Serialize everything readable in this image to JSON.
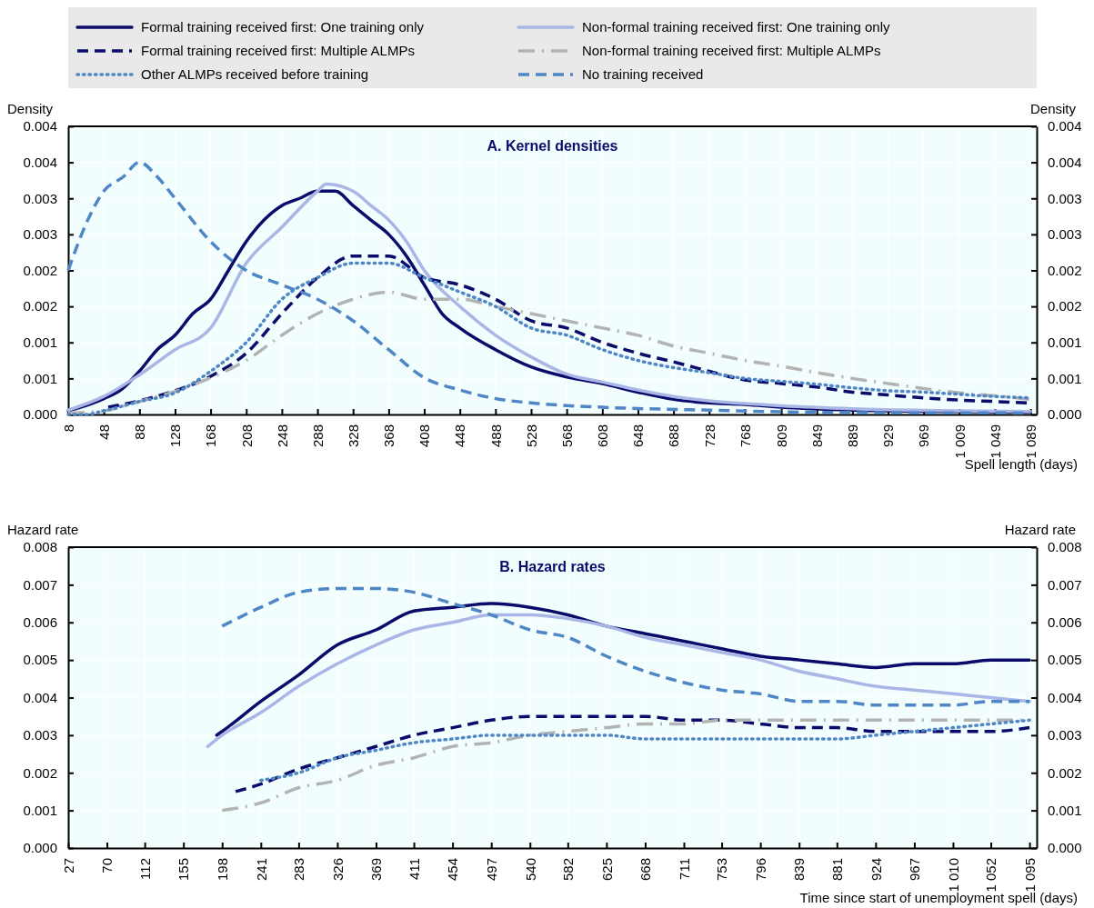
{
  "chart_data": [
    {
      "type": "line",
      "title": "A. Kernel densities",
      "xlabel": "Spell length (days)",
      "ylabel": "Density",
      "y2label": "Density",
      "legend": "top",
      "grid": true,
      "xlim": [
        8,
        1096
      ],
      "xticks": [
        8,
        48,
        88,
        128,
        168,
        208,
        248,
        288,
        328,
        368,
        408,
        448,
        488,
        528,
        568,
        608,
        648,
        688,
        728,
        768,
        809,
        849,
        889,
        929,
        969,
        {
          "value": 1009,
          "label": "1 009"
        },
        {
          "value": 1049,
          "label": "1 049"
        },
        {
          "value": 1089,
          "label": "1 089"
        }
      ],
      "ylim": [
        0,
        0.004
      ],
      "yticks": [
        {
          "value": 0,
          "label": "0.000"
        },
        {
          "value": 0.0005,
          "label": "0.001"
        },
        {
          "value": 0.001,
          "label": "0.001"
        },
        {
          "value": 0.0015,
          "label": "0.002"
        },
        {
          "value": 0.002,
          "label": "0.002"
        },
        {
          "value": 0.0025,
          "label": "0.003"
        },
        {
          "value": 0.003,
          "label": "0.003"
        },
        {
          "value": 0.0035,
          "label": "0.004"
        },
        {
          "value": 0.004,
          "label": "0.004"
        }
      ],
      "y2lim": [
        0,
        0.004
      ],
      "y2ticks": [
        {
          "value": 0,
          "label": "0.000"
        },
        {
          "value": 0.0005,
          "label": "0.001"
        },
        {
          "value": 0.001,
          "label": "0.001"
        },
        {
          "value": 0.0015,
          "label": "0.002"
        },
        {
          "value": 0.002,
          "label": "0.002"
        },
        {
          "value": 0.0025,
          "label": "0.003"
        },
        {
          "value": 0.003,
          "label": "0.003"
        },
        {
          "value": 0.0035,
          "label": "0.004"
        },
        {
          "value": 0.004,
          "label": "0.004"
        }
      ],
      "series": [
        {
          "name": "Formal training received first: One training only",
          "color": "#0b0b6b",
          "line_style": "solid",
          "x": [
            8,
            48,
            68,
            88,
            108,
            128,
            148,
            168,
            188,
            208,
            228,
            248,
            268,
            288,
            308,
            328,
            348,
            368,
            388,
            408,
            428,
            448,
            488,
            528,
            568,
            608,
            648,
            688,
            728,
            768,
            809,
            889,
            1009,
            1089
          ],
          "values": [
            5e-05,
            0.00022,
            0.00035,
            0.0006,
            0.0009,
            0.0011,
            0.0014,
            0.0016,
            0.002,
            0.0024,
            0.0027,
            0.0029,
            0.003,
            0.0031,
            0.0031,
            0.0029,
            0.0027,
            0.0025,
            0.0022,
            0.0018,
            0.0014,
            0.0012,
            0.0009,
            0.00066,
            0.00052,
            0.00043,
            0.00031,
            0.00021,
            0.00016,
            0.00014,
            0.0001,
            6e-05,
            4e-05,
            3e-05
          ]
        },
        {
          "name": "Non-formal training received first: One training only",
          "color": "#a9b6e6",
          "line_style": "solid",
          "x": [
            8,
            48,
            88,
            128,
            168,
            208,
            248,
            288,
            298,
            328,
            348,
            368,
            388,
            408,
            448,
            488,
            528,
            568,
            608,
            648,
            688,
            728,
            768,
            809,
            889,
            1009,
            1089
          ],
          "values": [
            6e-05,
            0.00025,
            0.00055,
            0.0009,
            0.0012,
            0.0021,
            0.0026,
            0.0031,
            0.0032,
            0.0031,
            0.0029,
            0.0027,
            0.0024,
            0.002,
            0.0015,
            0.0011,
            0.0008,
            0.00056,
            0.00045,
            0.00034,
            0.00025,
            0.00019,
            0.00015,
            0.00012,
            8e-05,
            5e-05,
            4e-05
          ]
        },
        {
          "name": "Formal training received first: Multiple ALMPs",
          "color": "#0b0b6b",
          "line_style": "dashed",
          "x": [
            53,
            88,
            128,
            168,
            208,
            248,
            288,
            328,
            368,
            408,
            448,
            488,
            528,
            568,
            608,
            648,
            688,
            728,
            768,
            809,
            849,
            889,
            929,
            969,
            1009,
            1049,
            1089
          ],
          "values": [
            0.0001,
            0.00019,
            0.00033,
            0.00053,
            0.00085,
            0.0014,
            0.0019,
            0.0022,
            0.0022,
            0.0019,
            0.0018,
            0.0016,
            0.0013,
            0.0012,
            0.001,
            0.00085,
            0.00073,
            0.0006,
            0.00048,
            0.00043,
            0.00038,
            0.00031,
            0.00027,
            0.00023,
            0.0002,
            0.00018,
            0.00016
          ]
        },
        {
          "name": "Non-formal training received first: Multiple ALMPs",
          "color": "#b3b3b3",
          "line_style": "dashdot",
          "x": [
            8,
            48,
            88,
            128,
            168,
            208,
            248,
            288,
            328,
            368,
            408,
            448,
            488,
            528,
            568,
            608,
            648,
            688,
            728,
            768,
            809,
            849,
            889,
            929,
            969,
            1009,
            1049,
            1089
          ],
          "values": [
            2e-05,
            5e-05,
            0.00018,
            0.00032,
            0.00051,
            0.00075,
            0.0011,
            0.0014,
            0.0016,
            0.0017,
            0.0016,
            0.0016,
            0.0015,
            0.0014,
            0.0013,
            0.0012,
            0.0011,
            0.00095,
            0.00085,
            0.00075,
            0.00067,
            0.00058,
            0.0005,
            0.00043,
            0.00036,
            0.0003,
            0.00026,
            0.00021
          ]
        },
        {
          "name": "Other ALMPs received before training",
          "color": "#4f86c6",
          "line_style": "dotted",
          "x": [
            8,
            28,
            48,
            88,
            128,
            168,
            208,
            248,
            288,
            328,
            368,
            408,
            448,
            488,
            528,
            568,
            608,
            648,
            688,
            728,
            768,
            809,
            849,
            889,
            929,
            969,
            1009,
            1049,
            1089
          ],
          "values": [
            0,
            0,
            5e-05,
            0.00018,
            0.0003,
            0.0006,
            0.001,
            0.0016,
            0.0019,
            0.0021,
            0.0021,
            0.0019,
            0.0017,
            0.0015,
            0.0012,
            0.0011,
            0.0009,
            0.00075,
            0.00065,
            0.00058,
            0.0005,
            0.00046,
            0.00042,
            0.00037,
            0.00033,
            0.00031,
            0.00028,
            0.00025,
            0.00023
          ]
        },
        {
          "name": "No training received",
          "color": "#4f86c6",
          "line_style": "dashed",
          "x": [
            8,
            30,
            48,
            70,
            88,
            108,
            128,
            168,
            208,
            248,
            288,
            328,
            368,
            408,
            448,
            488,
            528,
            608,
            728,
            849,
            1089
          ],
          "values": [
            0.002,
            0.0027,
            0.0031,
            0.0033,
            0.0035,
            0.0033,
            0.003,
            0.0024,
            0.002,
            0.0018,
            0.0016,
            0.0013,
            0.0009,
            0.00051,
            0.00034,
            0.00022,
            0.00016,
            0.0001,
            6e-05,
            3e-05,
            2e-05
          ]
        }
      ]
    },
    {
      "type": "line",
      "title": "B. Hazard rates",
      "xlabel": "Time since start of unemployment spell (days)",
      "ylabel": "Hazard rate",
      "y2label": "Hazard rate",
      "grid": true,
      "xlim": [
        27,
        1103
      ],
      "xticks": [
        27,
        70,
        112,
        155,
        198,
        241,
        283,
        326,
        369,
        411,
        454,
        497,
        540,
        582,
        625,
        668,
        711,
        753,
        796,
        839,
        881,
        924,
        967,
        {
          "value": 1010,
          "label": "1 010"
        },
        {
          "value": 1052,
          "label": "1 052"
        },
        {
          "value": 1095,
          "label": "1 095"
        }
      ],
      "ylim": [
        0,
        0.008
      ],
      "yticks": [
        {
          "value": 0,
          "label": "0.000"
        },
        {
          "value": 0.001,
          "label": "0.001"
        },
        {
          "value": 0.002,
          "label": "0.002"
        },
        {
          "value": 0.003,
          "label": "0.003"
        },
        {
          "value": 0.004,
          "label": "0.004"
        },
        {
          "value": 0.005,
          "label": "0.005"
        },
        {
          "value": 0.006,
          "label": "0.006"
        },
        {
          "value": 0.007,
          "label": "0.007"
        },
        {
          "value": 0.008,
          "label": "0.008"
        }
      ],
      "y2lim": [
        0,
        0.008
      ],
      "y2ticks": [
        {
          "value": 0,
          "label": "0.000"
        },
        {
          "value": 0.001,
          "label": "0.001"
        },
        {
          "value": 0.002,
          "label": "0.002"
        },
        {
          "value": 0.003,
          "label": "0.003"
        },
        {
          "value": 0.004,
          "label": "0.004"
        },
        {
          "value": 0.005,
          "label": "0.005"
        },
        {
          "value": 0.006,
          "label": "0.006"
        },
        {
          "value": 0.007,
          "label": "0.007"
        },
        {
          "value": 0.008,
          "label": "0.008"
        }
      ],
      "series": [
        {
          "color": "#0b0b6b",
          "line_style": "solid",
          "x": [
            192,
            198,
            241,
            283,
            326,
            369,
            411,
            454,
            497,
            540,
            582,
            625,
            668,
            711,
            753,
            796,
            839,
            881,
            924,
            967,
            1010,
            1052,
            1095
          ],
          "values": [
            0.003,
            0.0031,
            0.0039,
            0.0046,
            0.0054,
            0.0058,
            0.0063,
            0.0064,
            0.0065,
            0.0064,
            0.0062,
            0.0059,
            0.0057,
            0.0055,
            0.0053,
            0.0051,
            0.005,
            0.0049,
            0.0048,
            0.0049,
            0.0049,
            0.005,
            0.005
          ]
        },
        {
          "color": "#a9b6e6",
          "line_style": "solid",
          "x": [
            182,
            198,
            241,
            283,
            326,
            369,
            411,
            454,
            497,
            540,
            582,
            625,
            668,
            711,
            753,
            796,
            839,
            881,
            924,
            967,
            1010,
            1052,
            1095
          ],
          "values": [
            0.0027,
            0.003,
            0.0036,
            0.0043,
            0.0049,
            0.0054,
            0.0058,
            0.006,
            0.0062,
            0.0062,
            0.0061,
            0.0059,
            0.0056,
            0.0054,
            0.0052,
            0.005,
            0.0047,
            0.0045,
            0.0043,
            0.0042,
            0.0041,
            0.004,
            0.0039
          ]
        },
        {
          "color": "#0b0b6b",
          "line_style": "dashed",
          "x": [
            213,
            241,
            283,
            326,
            369,
            411,
            454,
            497,
            540,
            582,
            625,
            668,
            711,
            753,
            796,
            839,
            881,
            924,
            967,
            1010,
            1052,
            1095
          ],
          "values": [
            0.0015,
            0.0017,
            0.0021,
            0.0024,
            0.0027,
            0.003,
            0.0032,
            0.0034,
            0.0035,
            0.0035,
            0.0035,
            0.0035,
            0.0034,
            0.0034,
            0.0033,
            0.0032,
            0.0032,
            0.0031,
            0.0031,
            0.0031,
            0.0031,
            0.0032
          ]
        },
        {
          "color": "#b3b3b3",
          "line_style": "dashdot",
          "x": [
            198,
            241,
            283,
            326,
            369,
            411,
            454,
            497,
            540,
            582,
            625,
            668,
            711,
            753,
            796,
            839,
            881,
            924,
            967,
            1010,
            1052,
            1095
          ],
          "values": [
            0.001,
            0.0012,
            0.0016,
            0.0018,
            0.0022,
            0.0024,
            0.0027,
            0.0028,
            0.003,
            0.0031,
            0.0032,
            0.0033,
            0.0033,
            0.0034,
            0.0034,
            0.0034,
            0.0034,
            0.0034,
            0.0034,
            0.0034,
            0.0034,
            0.0034
          ]
        },
        {
          "color": "#4f86c6",
          "line_style": "dotted",
          "x": [
            241,
            283,
            326,
            369,
            411,
            454,
            497,
            540,
            582,
            625,
            668,
            711,
            753,
            796,
            839,
            881,
            924,
            967,
            1010,
            1052,
            1095
          ],
          "values": [
            0.0018,
            0.002,
            0.0024,
            0.0026,
            0.0028,
            0.0029,
            0.003,
            0.003,
            0.003,
            0.003,
            0.0029,
            0.0029,
            0.0029,
            0.0029,
            0.0029,
            0.0029,
            0.003,
            0.0031,
            0.0032,
            0.0033,
            0.0034
          ]
        },
        {
          "color": "#4f86c6",
          "line_style": "dashed",
          "x": [
            198,
            241,
            283,
            326,
            369,
            411,
            454,
            497,
            540,
            582,
            625,
            668,
            711,
            753,
            796,
            839,
            881,
            924,
            967,
            1010,
            1052,
            1095
          ],
          "values": [
            0.0059,
            0.0064,
            0.0068,
            0.0069,
            0.0069,
            0.0068,
            0.0065,
            0.0062,
            0.0058,
            0.0056,
            0.0051,
            0.0047,
            0.0044,
            0.0042,
            0.0041,
            0.0039,
            0.0039,
            0.0038,
            0.0038,
            0.0038,
            0.0039,
            0.0039
          ]
        }
      ]
    }
  ]
}
